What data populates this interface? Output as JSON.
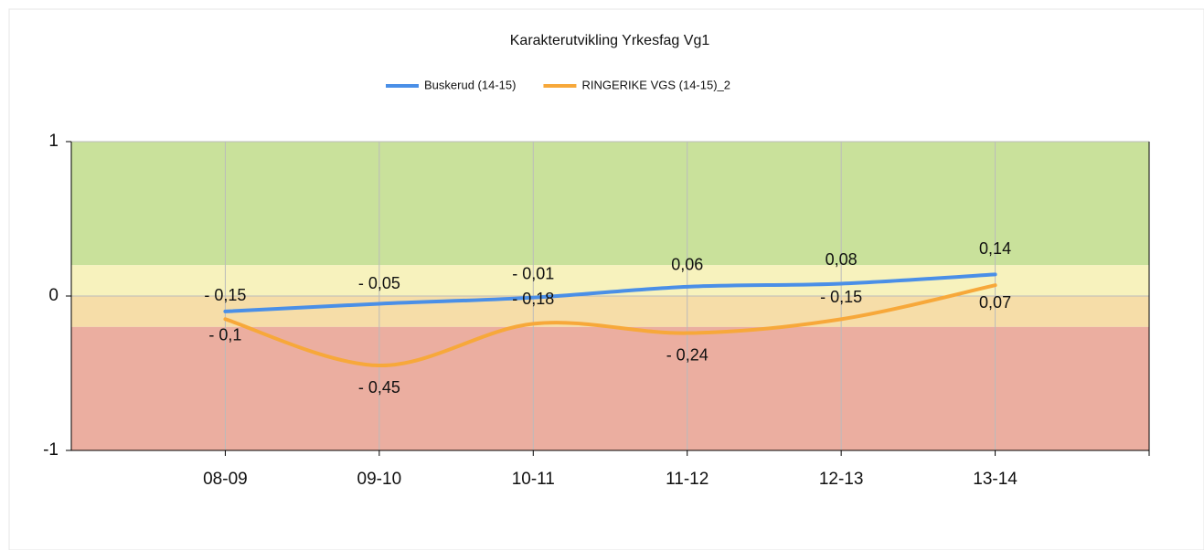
{
  "chart_data": {
    "type": "line",
    "title": "Karakterutvikling Yrkesfag Vg1",
    "categories": [
      "08-09",
      "09-10",
      "10-11",
      "11-12",
      "12-13",
      "13-14"
    ],
    "series": [
      {
        "name": "Buskerud (14-15)",
        "color": "#4a8fe7",
        "values": [
          -0.1,
          -0.05,
          -0.01,
          0.06,
          0.08,
          0.14
        ],
        "value_labels": [
          "- 0,1",
          "- 0,05",
          "- 0,01",
          "0,06",
          "0,08",
          "0,14"
        ]
      },
      {
        "name": "RINGERIKE VGS (14-15)_2",
        "color": "#f7a83a",
        "values": [
          -0.15,
          -0.45,
          -0.18,
          -0.24,
          -0.15,
          0.07
        ],
        "value_labels": [
          "- 0,15",
          "- 0,45",
          "- 0,18",
          "- 0,24",
          "- 0,15",
          "0,07"
        ]
      }
    ],
    "ylim": [
      -1,
      1
    ],
    "yticks": [
      -1,
      0,
      1
    ],
    "grid": true,
    "bands": [
      {
        "from": 0.2,
        "to": 1,
        "color": "#c9e19b"
      },
      {
        "from": 0,
        "to": 0.2,
        "color": "#f7f2bd"
      },
      {
        "from": -0.2,
        "to": 0,
        "color": "#f6dda8"
      },
      {
        "from": -1,
        "to": -0.2,
        "color": "#ebaea0"
      }
    ],
    "legend": "top"
  }
}
